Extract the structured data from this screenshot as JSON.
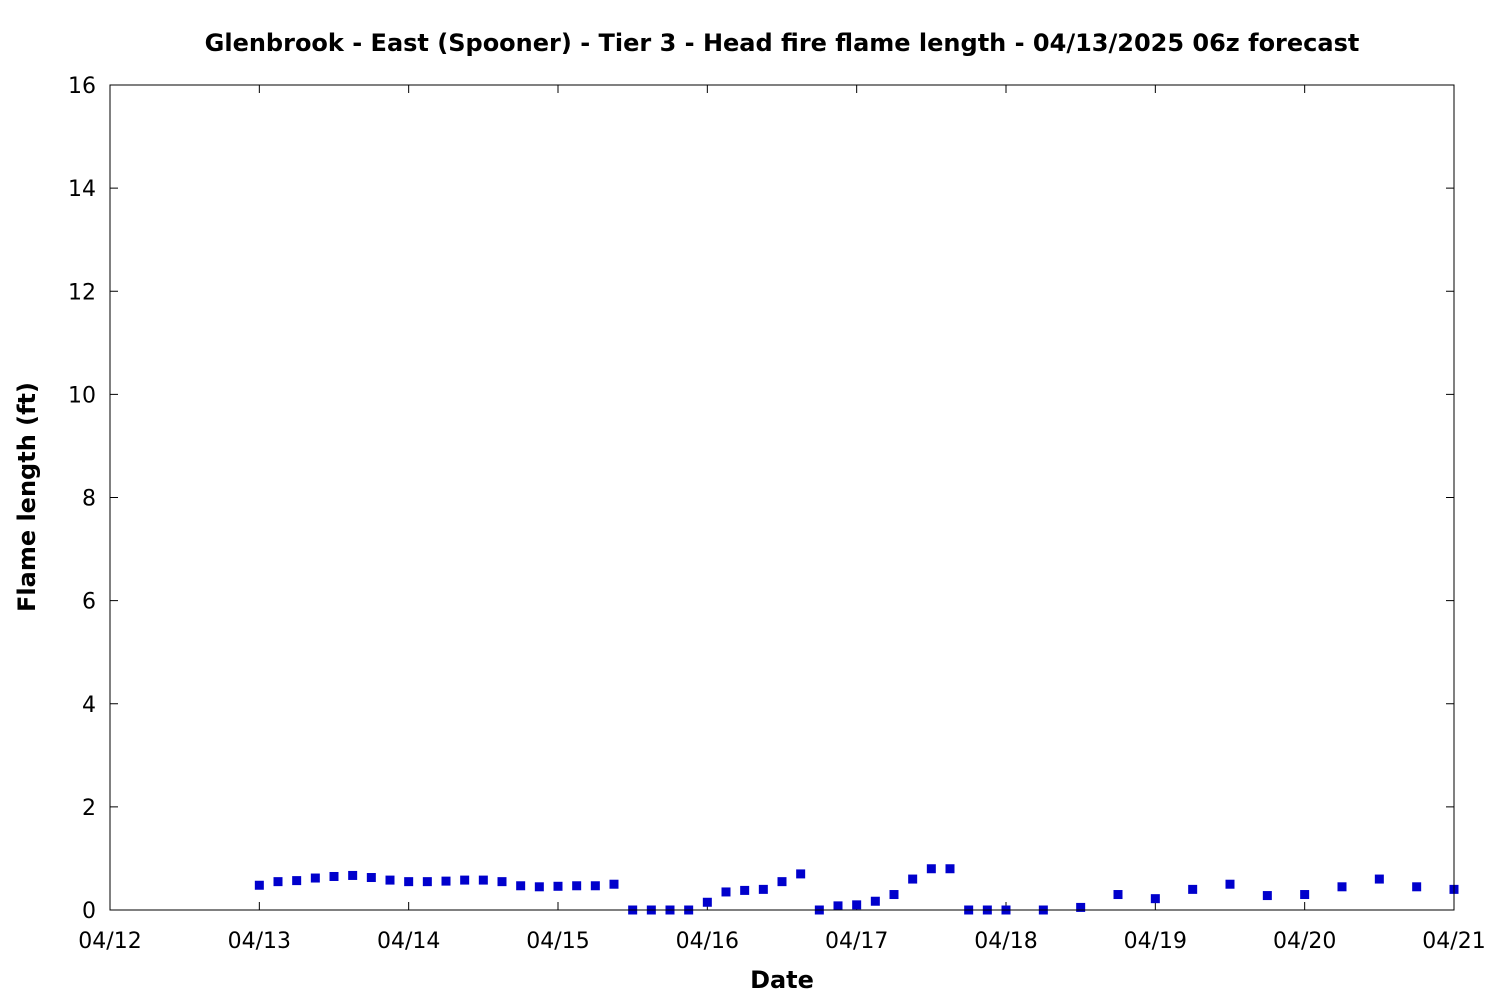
{
  "chart_data": {
    "type": "scatter",
    "title": "Glenbrook - East (Spooner) - Tier 3 - Head fire flame length - 04/13/2025 06z forecast",
    "xlabel": "Date",
    "ylabel": "Flame length (ft)",
    "x_tick_labels": [
      "04/12",
      "04/13",
      "04/14",
      "04/15",
      "04/16",
      "04/17",
      "04/18",
      "04/19",
      "04/20",
      "04/21"
    ],
    "y_tick_labels": [
      "0",
      "2",
      "4",
      "6",
      "8",
      "10",
      "12",
      "14",
      "16"
    ],
    "xlim": [
      "04/12 00:00",
      "04/21 00:00"
    ],
    "ylim": [
      0,
      16
    ],
    "grid": false,
    "marker_color": "#0000cc",
    "series": [
      {
        "x": [
          "04/13 00:00",
          "04/13 03:00",
          "04/13 06:00",
          "04/13 09:00",
          "04/13 12:00",
          "04/13 15:00",
          "04/13 18:00",
          "04/13 21:00",
          "04/14 00:00",
          "04/14 03:00",
          "04/14 06:00",
          "04/14 09:00",
          "04/14 12:00",
          "04/14 15:00",
          "04/14 18:00",
          "04/14 21:00",
          "04/15 00:00",
          "04/15 03:00",
          "04/15 06:00",
          "04/15 09:00",
          "04/15 12:00",
          "04/15 15:00",
          "04/15 18:00",
          "04/15 21:00",
          "04/16 00:00",
          "04/16 03:00",
          "04/16 06:00",
          "04/16 09:00",
          "04/16 12:00",
          "04/16 15:00",
          "04/16 18:00",
          "04/16 21:00",
          "04/17 00:00",
          "04/17 03:00",
          "04/17 06:00",
          "04/17 09:00",
          "04/17 12:00",
          "04/17 15:00",
          "04/17 18:00",
          "04/17 21:00",
          "04/18 00:00",
          "04/18 06:00",
          "04/18 12:00",
          "04/18 18:00",
          "04/19 00:00",
          "04/19 06:00",
          "04/19 12:00",
          "04/19 18:00",
          "04/20 00:00",
          "04/20 06:00",
          "04/20 12:00",
          "04/20 18:00",
          "04/21 00:00"
        ],
        "y": [
          0.48,
          0.55,
          0.57,
          0.62,
          0.65,
          0.67,
          0.63,
          0.58,
          0.55,
          0.55,
          0.56,
          0.58,
          0.58,
          0.55,
          0.47,
          0.45,
          0.46,
          0.47,
          0.47,
          0.5,
          0.0,
          0.0,
          0.0,
          0.0,
          0.15,
          0.35,
          0.38,
          0.4,
          0.55,
          0.7,
          0.0,
          0.08,
          0.1,
          0.17,
          0.3,
          0.6,
          0.8,
          0.8,
          0.0,
          0.0,
          0.0,
          0.0,
          0.05,
          0.3,
          0.22,
          0.4,
          0.5,
          0.28,
          0.3,
          0.45,
          0.6,
          0.45,
          0.4
        ]
      }
    ]
  }
}
